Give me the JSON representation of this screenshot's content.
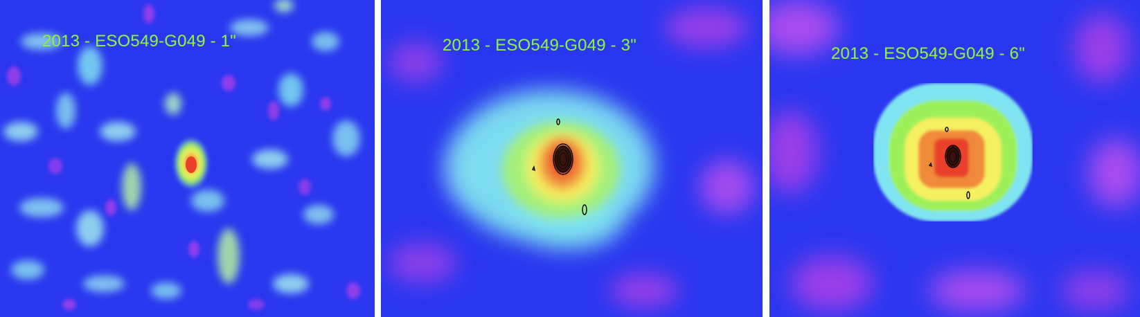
{
  "figure": {
    "panels": [
      {
        "label": "2013 - ESO549-G049 - 1\"",
        "beam": "1\"",
        "has_contours": false
      },
      {
        "label": "2013 - ESO549-G049 - 3\"",
        "beam": "3\"",
        "has_contours": true
      },
      {
        "label": "2013 - ESO549-G049 - 6\"",
        "beam": "6\"",
        "has_contours": true
      }
    ],
    "colors": {
      "label_text": "#8ff04a",
      "background_blue": "#2a37ee",
      "noise_magenta": "#c050f0",
      "cyan": "#7ff0ee",
      "green": "#9ef05a",
      "yellow": "#f5f060",
      "orange": "#f08a3a",
      "red": "#e8402a",
      "contour": "#000000",
      "separator": "#ffffff"
    }
  }
}
